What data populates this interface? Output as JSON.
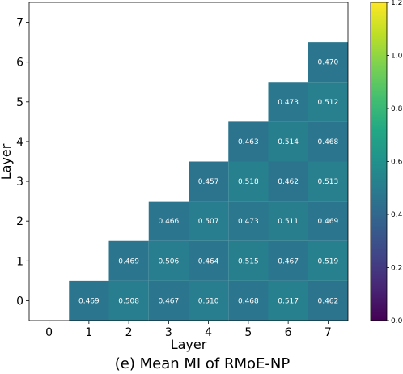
{
  "chart_data": {
    "type": "heatmap",
    "caption": "(e) Mean MI of RMoE-NP",
    "xlabel": "Layer",
    "ylabel": "Layer",
    "x_ticks": [
      "0",
      "1",
      "2",
      "3",
      "4",
      "5",
      "6",
      "7"
    ],
    "y_ticks": [
      "0",
      "1",
      "2",
      "3",
      "4",
      "5",
      "6",
      "7"
    ],
    "colormap": "viridis",
    "colorbar": {
      "range": [
        0.0,
        1.2
      ],
      "ticks": [
        "0.0",
        "0.2",
        "0.4",
        "0.6",
        "0.8",
        "1.0",
        "1.2"
      ]
    },
    "cells": [
      {
        "x": 1,
        "y": 0,
        "value": 0.469
      },
      {
        "x": 2,
        "y": 0,
        "value": 0.508
      },
      {
        "x": 3,
        "y": 0,
        "value": 0.467
      },
      {
        "x": 4,
        "y": 0,
        "value": 0.51
      },
      {
        "x": 5,
        "y": 0,
        "value": 0.468
      },
      {
        "x": 6,
        "y": 0,
        "value": 0.517
      },
      {
        "x": 7,
        "y": 0,
        "value": 0.462
      },
      {
        "x": 2,
        "y": 1,
        "value": 0.469
      },
      {
        "x": 3,
        "y": 1,
        "value": 0.506
      },
      {
        "x": 4,
        "y": 1,
        "value": 0.464
      },
      {
        "x": 5,
        "y": 1,
        "value": 0.515
      },
      {
        "x": 6,
        "y": 1,
        "value": 0.467
      },
      {
        "x": 7,
        "y": 1,
        "value": 0.519
      },
      {
        "x": 3,
        "y": 2,
        "value": 0.466
      },
      {
        "x": 4,
        "y": 2,
        "value": 0.507
      },
      {
        "x": 5,
        "y": 2,
        "value": 0.473
      },
      {
        "x": 6,
        "y": 2,
        "value": 0.511
      },
      {
        "x": 7,
        "y": 2,
        "value": 0.469
      },
      {
        "x": 4,
        "y": 3,
        "value": 0.457
      },
      {
        "x": 5,
        "y": 3,
        "value": 0.518
      },
      {
        "x": 6,
        "y": 3,
        "value": 0.462
      },
      {
        "x": 7,
        "y": 3,
        "value": 0.513
      },
      {
        "x": 5,
        "y": 4,
        "value": 0.463
      },
      {
        "x": 6,
        "y": 4,
        "value": 0.514
      },
      {
        "x": 7,
        "y": 4,
        "value": 0.468
      },
      {
        "x": 6,
        "y": 5,
        "value": 0.473
      },
      {
        "x": 7,
        "y": 5,
        "value": 0.512
      },
      {
        "x": 7,
        "y": 6,
        "value": 0.47
      }
    ],
    "value_labels": [
      "0.469",
      "0.508",
      "0.467",
      "0.510",
      "0.468",
      "0.517",
      "0.462",
      "0.469",
      "0.506",
      "0.464",
      "0.515",
      "0.467",
      "0.519",
      "0.466",
      "0.507",
      "0.473",
      "0.511",
      "0.469",
      "0.457",
      "0.518",
      "0.462",
      "0.513",
      "0.463",
      "0.514",
      "0.468",
      "0.473",
      "0.512",
      "0.470"
    ]
  }
}
